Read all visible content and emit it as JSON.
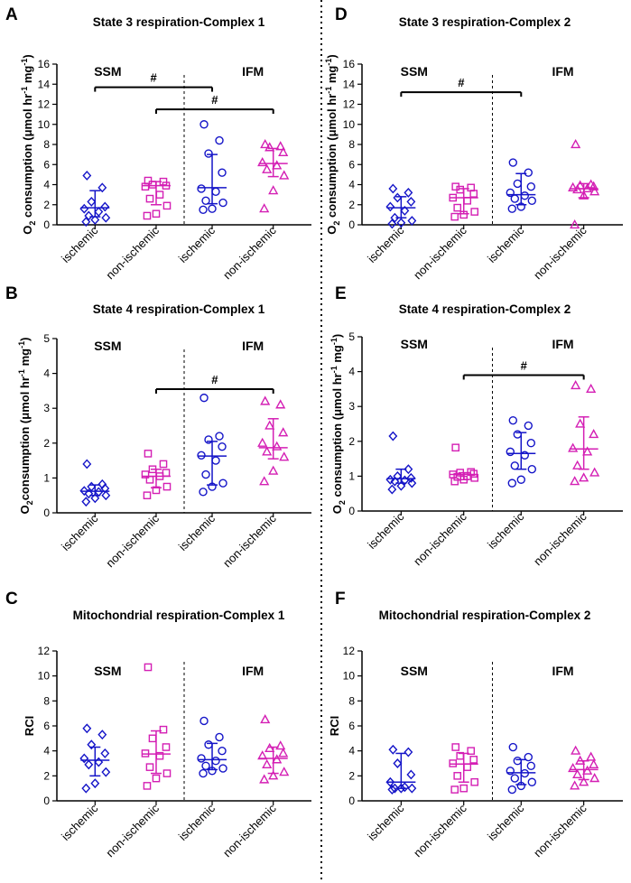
{
  "colors": {
    "ischemic": "#1414c8",
    "non_ischemic": "#d41fb4",
    "axis": "#000000"
  },
  "chart_data": [
    {
      "type": "scatter",
      "letter": "A",
      "title": "State 3 respiration-Complex 1",
      "ylabel_main": "O",
      "ylabel_sub": "2",
      "ylabel_rest": " consumption (μmol  hr",
      "ylabel_exp1": "-1",
      "ylabel_mid": " mg",
      "ylabel_exp2": "-1",
      "ylabel_end": ")",
      "ylim": [
        0,
        16
      ],
      "yticks": [
        "0",
        "2",
        "4",
        "6",
        "8",
        "10",
        "12",
        "14",
        "16"
      ],
      "groups": [
        "SSM",
        "IFM"
      ],
      "categories": [
        "ischemic",
        "non-ischemic",
        "ischemic",
        "non-ischemic"
      ],
      "series": [
        {
          "name": "SSM ischemic",
          "marker": "diamond",
          "color_key": "ischemic",
          "median": 1.7,
          "lower": 0.8,
          "upper": 3.4,
          "points": [
            4.9,
            3.7,
            2.3,
            1.8,
            1.6,
            1.3,
            0.9,
            0.7,
            0.5,
            0.3
          ]
        },
        {
          "name": "SSM non-ischemic",
          "marker": "square",
          "color_key": "non_ischemic",
          "median": 3.9,
          "lower": 2.0,
          "upper": 4.3,
          "points": [
            4.4,
            4.3,
            4.0,
            3.9,
            3.8,
            3.0,
            2.6,
            1.9,
            1.1,
            0.9
          ]
        },
        {
          "name": "IFM ischemic",
          "marker": "circle",
          "color_key": "ischemic",
          "median": 3.7,
          "lower": 2.1,
          "upper": 7.0,
          "points": [
            10.0,
            8.4,
            7.1,
            5.2,
            3.6,
            3.3,
            2.4,
            2.2,
            1.6,
            1.5
          ]
        },
        {
          "name": "IFM non-ischemic",
          "marker": "triangle",
          "color_key": "non_ischemic",
          "median": 6.1,
          "lower": 4.8,
          "upper": 7.6,
          "points": [
            8.0,
            7.8,
            7.7,
            7.2,
            6.2,
            5.9,
            5.5,
            4.9,
            3.4,
            1.6
          ]
        }
      ],
      "brackets": [
        {
          "from": 0,
          "to": 2,
          "y": 13.7,
          "label": "#"
        },
        {
          "from": 1,
          "to": 3,
          "y": 11.5,
          "label": "#"
        }
      ]
    },
    {
      "type": "scatter",
      "letter": "D",
      "title": "State 3 respiration-Complex 2",
      "ylabel_main": "O",
      "ylabel_sub": "2",
      "ylabel_rest": " consumption (μmol  hr",
      "ylabel_exp1": "-1",
      "ylabel_mid": " mg",
      "ylabel_exp2": "-1",
      "ylabel_end": ")",
      "ylim": [
        0,
        16
      ],
      "yticks": [
        "0",
        "2",
        "4",
        "6",
        "8",
        "10",
        "12",
        "14",
        "16"
      ],
      "groups": [
        "SSM",
        "IFM"
      ],
      "categories": [
        "ischemic",
        "non-ischemic",
        "ischemic",
        "non-ischemic"
      ],
      "series": [
        {
          "name": "SSM ischemic",
          "marker": "diamond",
          "color_key": "ischemic",
          "median": 1.7,
          "lower": 0.7,
          "upper": 2.8,
          "points": [
            3.6,
            3.2,
            2.7,
            2.3,
            1.8,
            1.4,
            0.7,
            0.4,
            0.2,
            0.1
          ]
        },
        {
          "name": "SSM non-ischemic",
          "marker": "square",
          "color_key": "non_ischemic",
          "median": 2.7,
          "lower": 1.1,
          "upper": 3.6,
          "points": [
            3.8,
            3.7,
            3.5,
            3.1,
            2.7,
            2.4,
            1.7,
            1.3,
            1.0,
            0.8
          ]
        },
        {
          "name": "IFM ischemic",
          "marker": "circle",
          "color_key": "ischemic",
          "median": 3.0,
          "lower": 2.0,
          "upper": 5.1,
          "points": [
            6.2,
            5.2,
            4.1,
            3.8,
            3.2,
            2.9,
            2.6,
            2.4,
            1.8,
            1.6
          ]
        },
        {
          "name": "IFM non-ischemic",
          "marker": "triangle",
          "color_key": "non_ischemic",
          "median": 3.6,
          "lower": 2.7,
          "upper": 4.1,
          "points": [
            8.0,
            4.0,
            3.9,
            3.8,
            3.7,
            3.6,
            3.5,
            3.3,
            2.9,
            0.0
          ]
        }
      ],
      "brackets": [
        {
          "from": 0,
          "to": 2,
          "y": 13.2,
          "label": "#"
        }
      ]
    },
    {
      "type": "scatter",
      "letter": "B",
      "title": "State 4 respiration-Complex 1",
      "ylabel_main": "O",
      "ylabel_sub": "2",
      "ylabel_rest": "consumption (μmol  hr",
      "ylabel_exp1": "-1",
      "ylabel_mid": " mg",
      "ylabel_exp2": "-1",
      "ylabel_end": ")",
      "ylim": [
        0,
        5
      ],
      "yticks": [
        "0",
        "1",
        "2",
        "3",
        "4",
        "5"
      ],
      "groups": [
        "SSM",
        "IFM"
      ],
      "categories": [
        "ischemic",
        "non-ischemic",
        "ischemic",
        "non-ischemic"
      ],
      "series": [
        {
          "name": "SSM ischemic",
          "marker": "diamond",
          "color_key": "ischemic",
          "median": 0.62,
          "lower": 0.5,
          "upper": 0.8,
          "points": [
            1.4,
            0.82,
            0.75,
            0.7,
            0.63,
            0.6,
            0.55,
            0.5,
            0.42,
            0.32
          ]
        },
        {
          "name": "SSM non-ischemic",
          "marker": "square",
          "color_key": "non_ischemic",
          "median": 1.05,
          "lower": 0.72,
          "upper": 1.25,
          "points": [
            1.7,
            1.4,
            1.25,
            1.15,
            1.1,
            1.05,
            0.95,
            0.75,
            0.65,
            0.5
          ]
        },
        {
          "name": "IFM ischemic",
          "marker": "circle",
          "color_key": "ischemic",
          "median": 1.63,
          "lower": 0.8,
          "upper": 2.05,
          "points": [
            3.3,
            2.2,
            2.1,
            1.9,
            1.65,
            1.5,
            1.1,
            0.85,
            0.75,
            0.6
          ]
        },
        {
          "name": "IFM non-ischemic",
          "marker": "triangle",
          "color_key": "non_ischemic",
          "median": 1.87,
          "lower": 1.55,
          "upper": 2.7,
          "points": [
            3.2,
            3.1,
            2.5,
            2.3,
            2.0,
            1.9,
            1.75,
            1.6,
            1.2,
            0.9
          ]
        }
      ],
      "brackets": [
        {
          "from": 1,
          "to": 3,
          "y": 3.55,
          "label": "#"
        }
      ]
    },
    {
      "type": "scatter",
      "letter": "E",
      "title": "State 4 respiration-Complex 2",
      "ylabel_main": "O",
      "ylabel_sub": "2",
      "ylabel_rest": " consumption (μmol  hr",
      "ylabel_exp1": "-1",
      "ylabel_mid": " mg",
      "ylabel_exp2": "-1",
      "ylabel_end": ")",
      "ylim": [
        0,
        5
      ],
      "yticks": [
        "0",
        "1",
        "2",
        "3",
        "4",
        "5"
      ],
      "groups": [
        "SSM",
        "IFM"
      ],
      "categories": [
        "ischemic",
        "non-ischemic",
        "ischemic",
        "non-ischemic"
      ],
      "series": [
        {
          "name": "SSM ischemic",
          "marker": "diamond",
          "color_key": "ischemic",
          "median": 0.93,
          "lower": 0.8,
          "upper": 1.2,
          "points": [
            2.15,
            1.2,
            1.0,
            0.95,
            0.9,
            0.88,
            0.85,
            0.8,
            0.72,
            0.62
          ]
        },
        {
          "name": "SSM non-ischemic",
          "marker": "square",
          "color_key": "non_ischemic",
          "median": 1.05,
          "lower": 0.9,
          "upper": 1.1,
          "points": [
            1.82,
            1.12,
            1.1,
            1.07,
            1.05,
            1.0,
            0.98,
            0.95,
            0.9,
            0.85
          ]
        },
        {
          "name": "IFM ischemic",
          "marker": "circle",
          "color_key": "ischemic",
          "median": 1.65,
          "lower": 1.2,
          "upper": 2.25,
          "points": [
            2.6,
            2.45,
            2.2,
            1.95,
            1.7,
            1.6,
            1.3,
            1.2,
            0.9,
            0.8
          ]
        },
        {
          "name": "IFM non-ischemic",
          "marker": "triangle",
          "color_key": "non_ischemic",
          "median": 1.78,
          "lower": 1.2,
          "upper": 2.7,
          "points": [
            3.6,
            3.5,
            2.5,
            2.2,
            1.8,
            1.7,
            1.3,
            1.1,
            0.95,
            0.85
          ]
        }
      ],
      "brackets": [
        {
          "from": 1,
          "to": 3,
          "y": 3.9,
          "label": "#"
        }
      ]
    },
    {
      "type": "scatter",
      "letter": "C",
      "title": "Mitochondrial respiration-Complex 1",
      "ylabel_main": "RCI",
      "ylim": [
        0,
        12
      ],
      "yticks": [
        "0",
        "2",
        "4",
        "6",
        "8",
        "10",
        "12"
      ],
      "groups": [
        "SSM",
        "IFM"
      ],
      "categories": [
        "ischemic",
        "non-ischemic",
        "ischemic",
        "non-ischemic"
      ],
      "series": [
        {
          "name": "SSM ischemic",
          "marker": "diamond",
          "color_key": "ischemic",
          "median": 3.25,
          "lower": 2.0,
          "upper": 4.3,
          "points": [
            5.8,
            5.3,
            4.5,
            3.8,
            3.4,
            3.1,
            2.9,
            2.3,
            1.4,
            1.0
          ]
        },
        {
          "name": "SSM non-ischemic",
          "marker": "square",
          "color_key": "non_ischemic",
          "median": 3.75,
          "lower": 2.2,
          "upper": 5.6,
          "points": [
            10.7,
            5.7,
            5.0,
            4.3,
            3.8,
            3.6,
            2.7,
            2.2,
            1.8,
            1.2
          ]
        },
        {
          "name": "IFM ischemic",
          "marker": "circle",
          "color_key": "ischemic",
          "median": 3.3,
          "lower": 2.5,
          "upper": 4.6,
          "points": [
            6.4,
            5.1,
            4.5,
            4.0,
            3.4,
            3.2,
            2.8,
            2.6,
            2.4,
            2.2
          ]
        },
        {
          "name": "IFM non-ischemic",
          "marker": "triangle",
          "color_key": "non_ischemic",
          "median": 3.4,
          "lower": 2.2,
          "upper": 4.3,
          "points": [
            6.5,
            4.4,
            4.2,
            3.8,
            3.6,
            3.3,
            2.9,
            2.3,
            2.0,
            1.7
          ]
        }
      ],
      "brackets": []
    },
    {
      "type": "scatter",
      "letter": "F",
      "title": "Mitochondrial respiration-Complex 2",
      "ylabel_main": "RCI",
      "ylim": [
        0,
        12
      ],
      "yticks": [
        "0",
        "2",
        "4",
        "6",
        "8",
        "10",
        "12"
      ],
      "groups": [
        "SSM",
        "IFM"
      ],
      "categories": [
        "ischemic",
        "non-ischemic",
        "ischemic",
        "non-ischemic"
      ],
      "series": [
        {
          "name": "SSM ischemic",
          "marker": "diamond",
          "color_key": "ischemic",
          "median": 1.5,
          "lower": 1.0,
          "upper": 3.8,
          "points": [
            4.1,
            3.9,
            3.0,
            2.1,
            1.5,
            1.1,
            1.0,
            1.0,
            1.0,
            0.9
          ]
        },
        {
          "name": "SSM non-ischemic",
          "marker": "square",
          "color_key": "non_ischemic",
          "median": 2.95,
          "lower": 1.5,
          "upper": 3.8,
          "points": [
            4.3,
            4.0,
            3.6,
            3.3,
            3.0,
            2.7,
            2.0,
            1.5,
            1.0,
            0.9
          ]
        },
        {
          "name": "IFM ischemic",
          "marker": "circle",
          "color_key": "ischemic",
          "median": 2.25,
          "lower": 1.3,
          "upper": 3.3,
          "points": [
            4.3,
            3.5,
            3.2,
            2.8,
            2.4,
            2.2,
            1.8,
            1.5,
            1.2,
            0.9
          ]
        },
        {
          "name": "IFM non-ischemic",
          "marker": "triangle",
          "color_key": "non_ischemic",
          "median": 2.5,
          "lower": 1.7,
          "upper": 3.2,
          "points": [
            4.0,
            3.5,
            3.2,
            2.9,
            2.6,
            2.4,
            2.1,
            1.8,
            1.5,
            1.2
          ]
        }
      ],
      "brackets": []
    }
  ]
}
